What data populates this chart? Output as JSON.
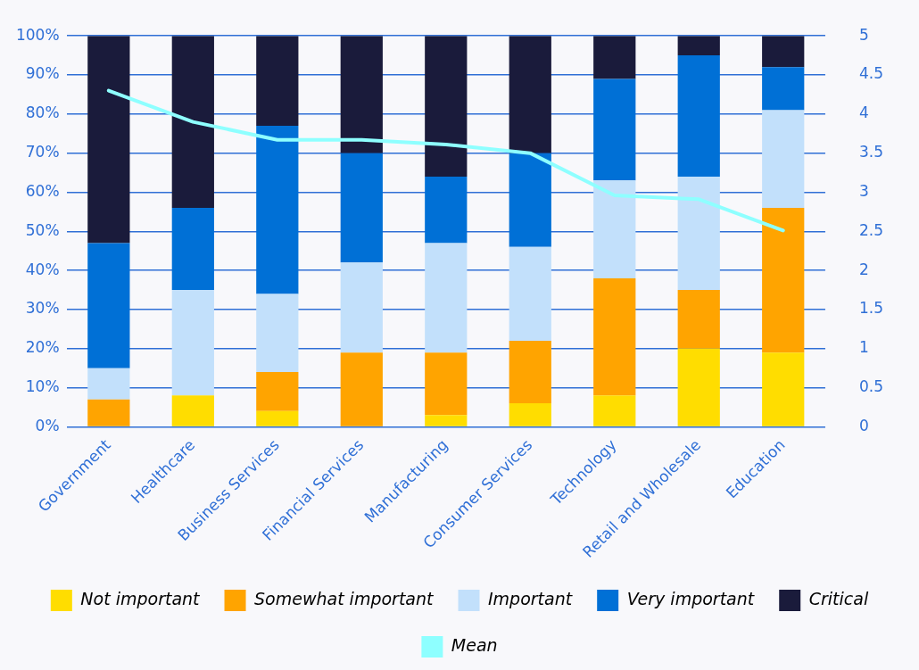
{
  "chart_data": {
    "type": "bar",
    "stacked": true,
    "categories": [
      "Government",
      "Healthcare",
      "Business Services",
      "Financial Services",
      "Manufacturing",
      "Consumer Services",
      "Technology",
      "Retail and Wholesale",
      "Education"
    ],
    "series": [
      {
        "name": "Not important",
        "color": "#ffdd00",
        "values": [
          0,
          8,
          4,
          0,
          3,
          6,
          8,
          20,
          19
        ]
      },
      {
        "name": "Somewhat important",
        "color": "#ffa400",
        "values": [
          7,
          0,
          10,
          19,
          16,
          16,
          30,
          15,
          37
        ]
      },
      {
        "name": "Important",
        "color": "#c2e0fb",
        "values": [
          8,
          27,
          20,
          23,
          28,
          24,
          25,
          29,
          25
        ]
      },
      {
        "name": "Very important",
        "color": "#0070d6",
        "values": [
          32,
          21,
          43,
          28,
          17,
          24,
          26,
          31,
          11
        ]
      },
      {
        "name": "Critical",
        "color": "#1a1b3b",
        "values": [
          53,
          44,
          23,
          30,
          36,
          30,
          11,
          5,
          8
        ]
      },
      {
        "name": "Mean",
        "type": "line",
        "axis": "y2",
        "color": "#8effff",
        "values": [
          4.3,
          3.9,
          3.67,
          3.67,
          3.61,
          3.5,
          2.96,
          2.91,
          2.51
        ]
      }
    ],
    "ylim": [
      0,
      100
    ],
    "yticks": [
      {
        "value": 0,
        "label": "0%"
      },
      {
        "value": 10,
        "label": "10%"
      },
      {
        "value": 20,
        "label": "20%"
      },
      {
        "value": 30,
        "label": "30%"
      },
      {
        "value": 40,
        "label": "40%"
      },
      {
        "value": 50,
        "label": "50%"
      },
      {
        "value": 60,
        "label": "60%"
      },
      {
        "value": 70,
        "label": "70%"
      },
      {
        "value": 80,
        "label": "80%"
      },
      {
        "value": 90,
        "label": "90%"
      },
      {
        "value": 100,
        "label": "100%"
      }
    ],
    "y2lim": [
      0,
      5
    ],
    "y2ticks": [
      0,
      0.5,
      1,
      1.5,
      2,
      2.5,
      3,
      3.5,
      4,
      4.5,
      5
    ],
    "grid": "y",
    "legend": "bottom",
    "marker": "none"
  }
}
